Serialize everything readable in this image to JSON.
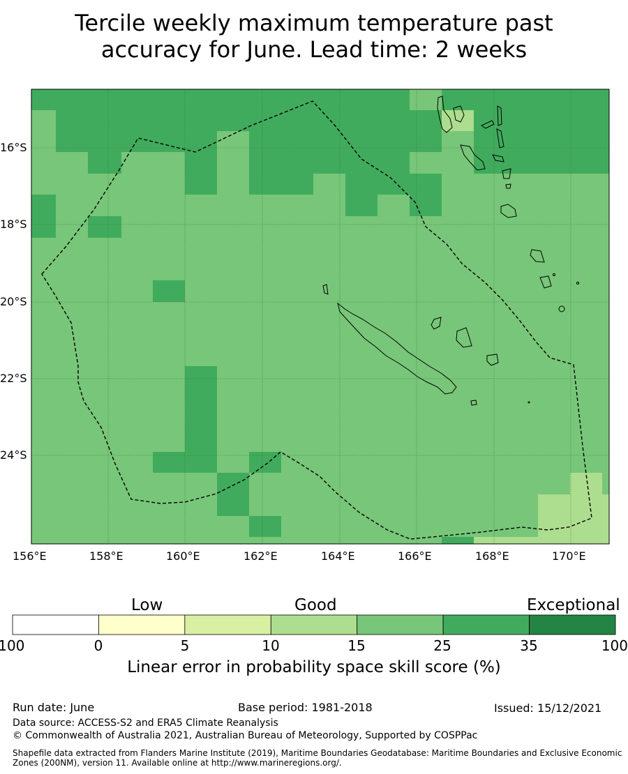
{
  "title_line1": "Tercile weekly maximum temperature past",
  "title_line2": "accuracy for June. Lead time: 2 weeks",
  "lon_labels": [
    "156°E",
    "158°E",
    "160°E",
    "162°E",
    "164°E",
    "166°E",
    "168°E",
    "170°E"
  ],
  "lat_labels": [
    "16°S",
    "18°S",
    "20°S",
    "22°S",
    "24°S"
  ],
  "colorbar": {
    "categories": [
      "Low",
      "Good",
      "Exceptional"
    ],
    "ticks": [
      "-100",
      "0",
      "5",
      "10",
      "15",
      "25",
      "35",
      "100"
    ],
    "bins": [
      {
        "color": "#ffffff",
        "from": "-100",
        "to": "0"
      },
      {
        "color": "#ffffcc",
        "from": "0",
        "to": "5"
      },
      {
        "color": "#d9f0a3",
        "from": "5",
        "to": "10"
      },
      {
        "color": "#addd8e",
        "from": "10",
        "to": "15"
      },
      {
        "color": "#78c679",
        "from": "15",
        "to": "25"
      },
      {
        "color": "#41ab5d",
        "from": "25",
        "to": "35"
      },
      {
        "color": "#238443",
        "from": "35",
        "to": "100"
      }
    ],
    "label": "Linear error in probability space skill score (%)"
  },
  "footer": {
    "run_date": "Run date: June",
    "base_period": "Base period: 1981-2018",
    "issued": "Issued: 15/12/2021",
    "data_source": "Data source: ACCESS-S2 and ERA5 Climate Reanalysis",
    "copyright": "© Commonwealth of Australia 2021, Australian Bureau of Meteorology, Supported by COSPPac",
    "shapefile_line1": "Shapefile data extracted from Flanders Marine Institute (2019), Maritime Boundaries Geodatabase: Maritime Boundaries and Exclusive Economic",
    "shapefile_line2": "Zones (200NM), version 11. Available online at http://www.marineregions.org/."
  },
  "colors": {
    "base": "#78c679",
    "high": "#41ab5d",
    "mid": "#addd8e"
  }
}
